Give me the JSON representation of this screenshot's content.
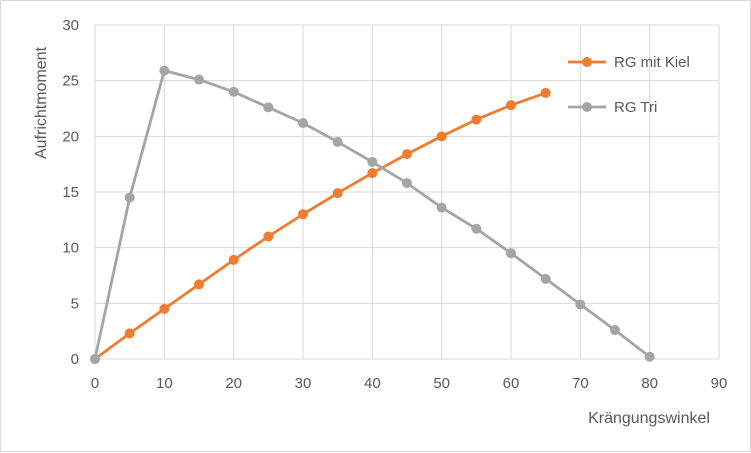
{
  "chart_data": {
    "type": "line",
    "title": "",
    "xlabel": "Krängungswinkel",
    "ylabel": "Aufrichtmoment",
    "xlim": [
      0,
      90
    ],
    "ylim": [
      0,
      30
    ],
    "xticks": [
      0,
      10,
      20,
      30,
      40,
      50,
      60,
      70,
      80,
      90
    ],
    "yticks": [
      0,
      5,
      10,
      15,
      20,
      25,
      30
    ],
    "grid": true,
    "legend_position": "top-right",
    "series": [
      {
        "name": "RG mit Kiel",
        "color": "#ed7d31",
        "x": [
          0,
          5,
          10,
          15,
          20,
          25,
          30,
          35,
          40,
          45,
          50,
          55,
          60,
          65
        ],
        "y": [
          0,
          2.3,
          4.5,
          6.7,
          8.9,
          11.0,
          13.0,
          14.9,
          16.7,
          18.4,
          20.0,
          21.5,
          22.8,
          23.9
        ]
      },
      {
        "name": "RG Tri",
        "color": "#a5a5a5",
        "x": [
          0,
          5,
          10,
          15,
          20,
          25,
          30,
          35,
          40,
          45,
          50,
          55,
          60,
          65,
          70,
          75,
          80
        ],
        "y": [
          0,
          14.5,
          25.9,
          25.1,
          24.0,
          22.6,
          21.2,
          19.5,
          17.7,
          15.8,
          13.6,
          11.7,
          9.5,
          7.2,
          4.9,
          2.6,
          0.2
        ]
      }
    ]
  }
}
